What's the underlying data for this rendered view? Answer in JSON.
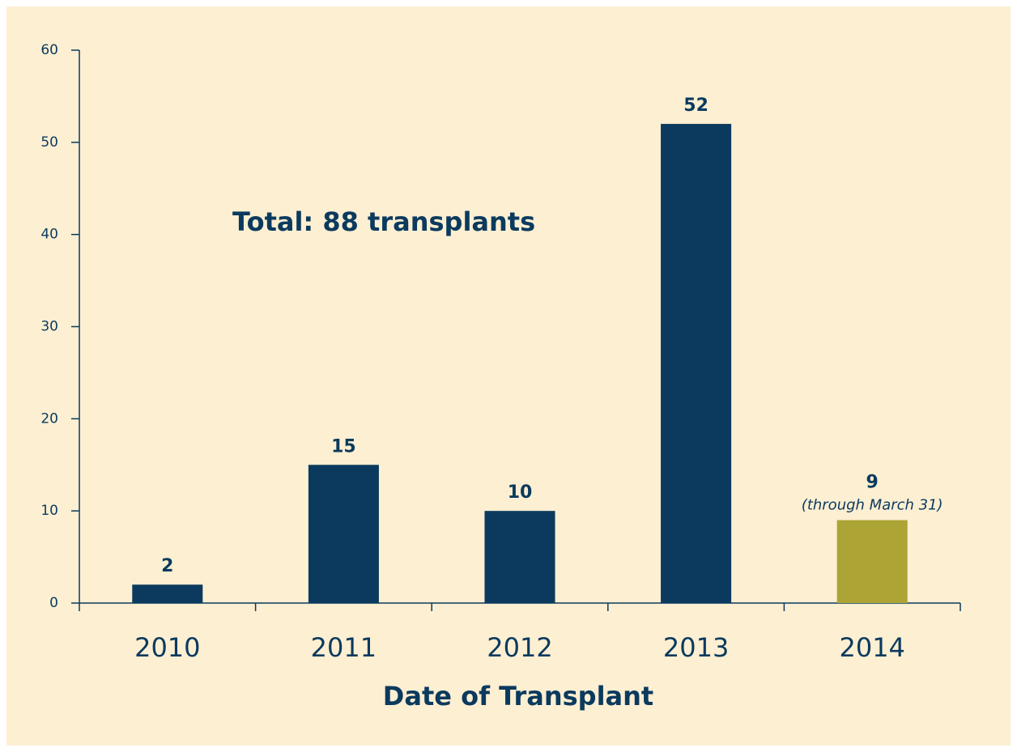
{
  "chart_data": {
    "type": "bar",
    "x_label": "Date of Transplant",
    "annotation": "Total: 88 transplants",
    "categories": [
      "2010",
      "2011",
      "2012",
      "2013",
      "2014"
    ],
    "values": [
      2,
      15,
      10,
      52,
      9
    ],
    "colors": [
      "#0b3a5e",
      "#0b3a5e",
      "#0b3a5e",
      "#0b3a5e",
      "#aca435"
    ],
    "bar_notes": [
      null,
      null,
      null,
      null,
      "(through March 31)"
    ],
    "ylim": [
      0,
      60
    ],
    "yticks": [
      0,
      10,
      20,
      30,
      40,
      50,
      60
    ],
    "grid": false
  }
}
